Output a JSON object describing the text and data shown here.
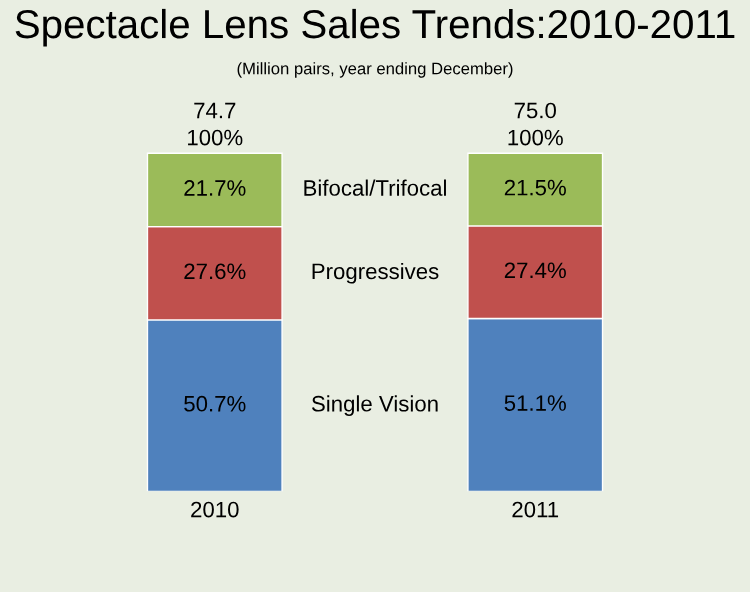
{
  "chart_data": {
    "type": "bar",
    "stacked": true,
    "title": "Spectacle Lens Sales Trends:2010-2011",
    "subtitle": "(Million pairs, year ending December)",
    "categories": [
      "2010",
      "2011"
    ],
    "series": [
      {
        "name": "Single Vision",
        "color": "#4f81bd",
        "values": [
          50.7,
          51.1
        ],
        "value_labels": [
          "50.7%",
          "51.1%"
        ]
      },
      {
        "name": "Progressives",
        "color": "#c0504d",
        "values": [
          27.6,
          27.4
        ],
        "value_labels": [
          "27.6%",
          "27.4%"
        ]
      },
      {
        "name": "Bifocal/Trifocal",
        "color": "#9bbb59",
        "values": [
          21.7,
          21.5
        ],
        "value_labels": [
          "21.7%",
          "21.5%"
        ]
      }
    ],
    "totals": [
      "100%",
      "100%"
    ],
    "annotations": [
      "74.7",
      "75.0"
    ],
    "legend": false,
    "grid": false
  }
}
